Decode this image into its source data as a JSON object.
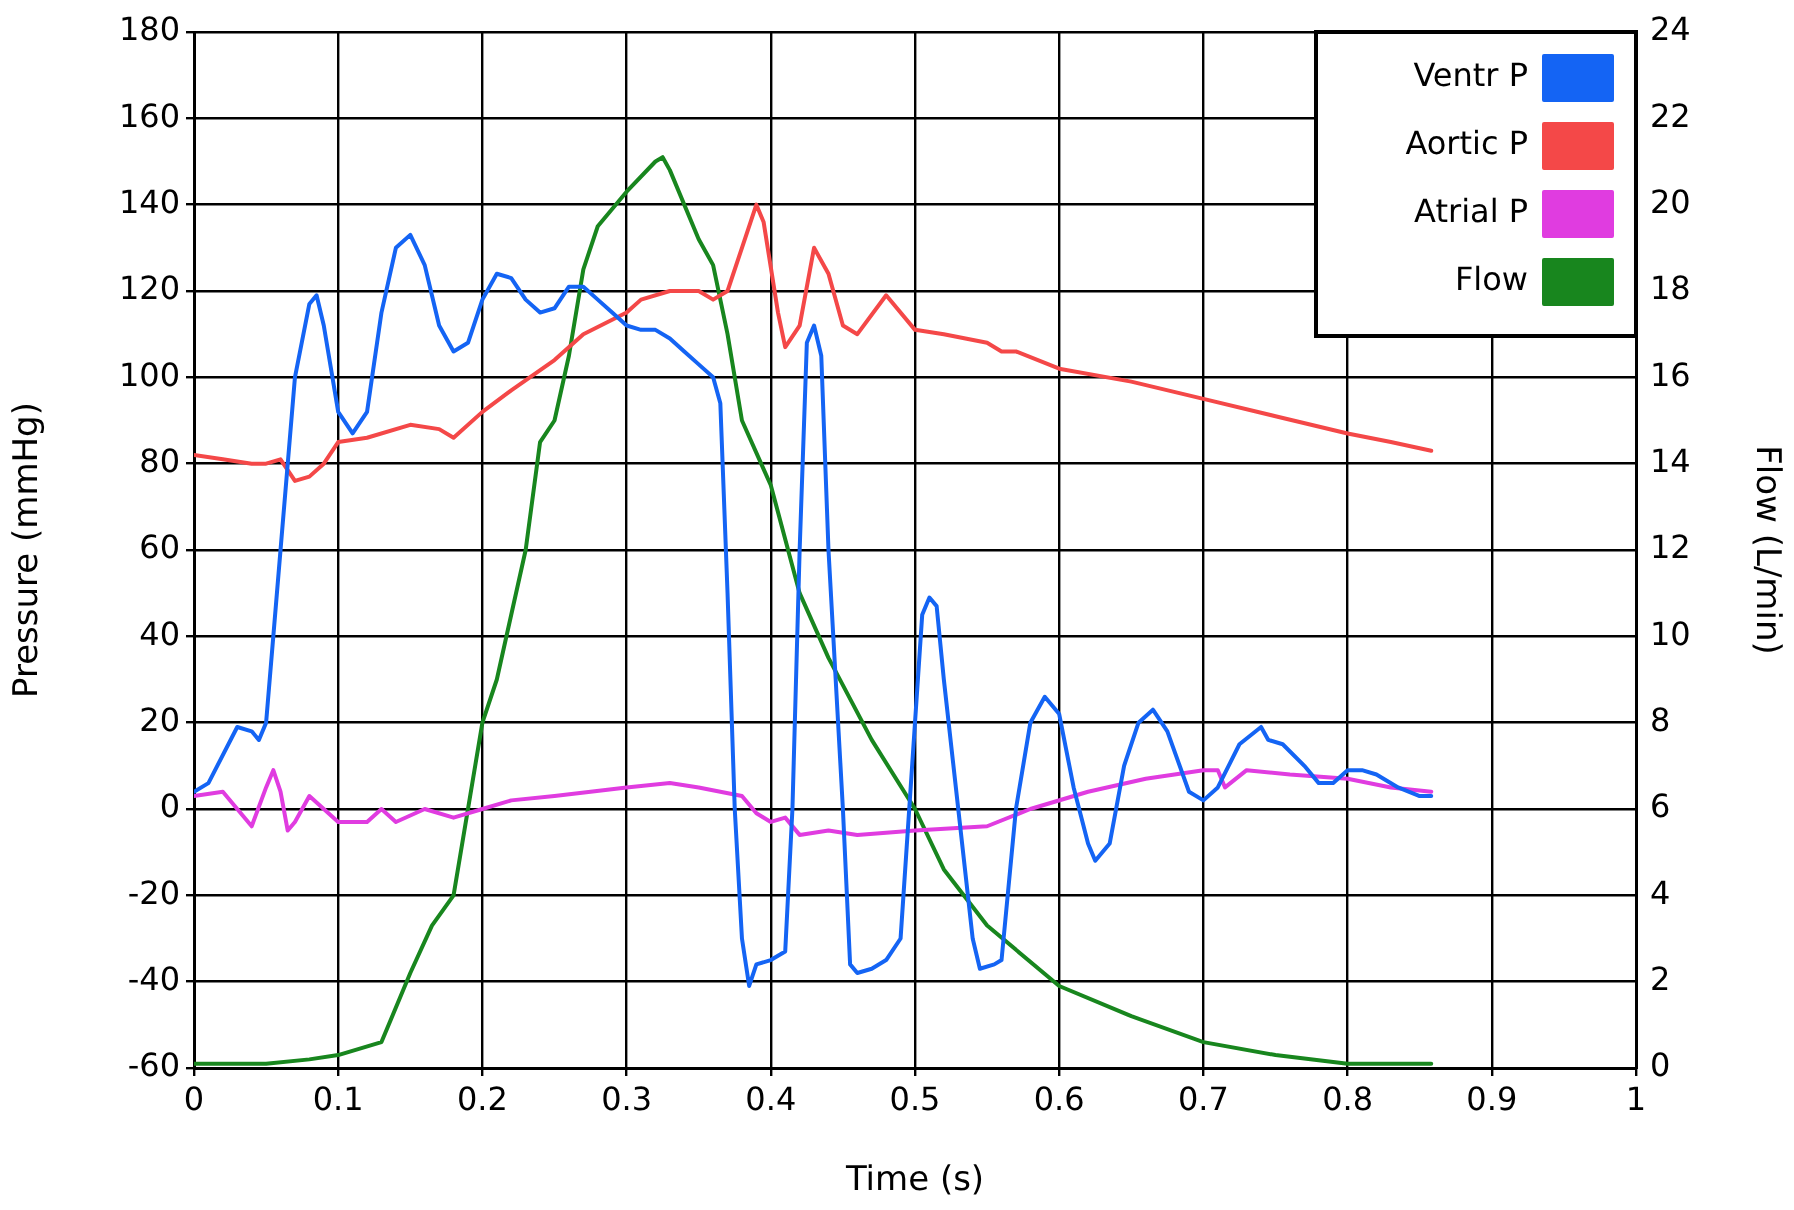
{
  "chart_data": {
    "type": "line",
    "xlabel": "Time (s)",
    "ylabel": "Pressure (mmHg)",
    "y2label": "Flow (L/min)",
    "xlim": [
      0,
      1
    ],
    "xticks": [
      0,
      0.1,
      0.2,
      0.3,
      0.4,
      0.5,
      0.6,
      0.7,
      0.8,
      0.9,
      1
    ],
    "ylim": [
      -60,
      180
    ],
    "yticks": [
      -60,
      -40,
      -20,
      0,
      20,
      40,
      60,
      80,
      100,
      120,
      140,
      160,
      180
    ],
    "y2lim": [
      0,
      24
    ],
    "y2ticks": [
      0,
      2,
      4,
      6,
      8,
      10,
      12,
      14,
      16,
      18,
      20,
      22,
      24
    ],
    "grid": true,
    "legend": "top right",
    "marker": "none",
    "line_style": "solid",
    "series": [
      {
        "name": "Ventr P",
        "color": "#1464f4",
        "x": [
          0,
          0.01,
          0.03,
          0.04,
          0.045,
          0.05,
          0.06,
          0.07,
          0.08,
          0.085,
          0.09,
          0.1,
          0.11,
          0.12,
          0.13,
          0.14,
          0.15,
          0.16,
          0.17,
          0.18,
          0.19,
          0.2,
          0.21,
          0.22,
          0.23,
          0.24,
          0.25,
          0.26,
          0.27,
          0.28,
          0.29,
          0.3,
          0.31,
          0.32,
          0.33,
          0.34,
          0.35,
          0.36,
          0.365,
          0.37,
          0.375,
          0.38,
          0.385,
          0.39,
          0.4,
          0.41,
          0.415,
          0.42,
          0.425,
          0.43,
          0.435,
          0.44,
          0.45,
          0.455,
          0.46,
          0.47,
          0.48,
          0.49,
          0.5,
          0.505,
          0.51,
          0.515,
          0.52,
          0.53,
          0.54,
          0.545,
          0.555,
          0.56,
          0.57,
          0.58,
          0.59,
          0.6,
          0.61,
          0.62,
          0.625,
          0.635,
          0.645,
          0.655,
          0.665,
          0.675,
          0.69,
          0.7,
          0.71,
          0.725,
          0.74,
          0.745,
          0.755,
          0.77,
          0.78,
          0.79,
          0.8,
          0.81,
          0.82,
          0.835,
          0.85,
          0.858
        ],
        "values": [
          4,
          6,
          19,
          18,
          16,
          20,
          60,
          100,
          117,
          119,
          112,
          92,
          87,
          92,
          115,
          130,
          133,
          126,
          112,
          106,
          108,
          118,
          124,
          123,
          118,
          115,
          116,
          121,
          121,
          118,
          115,
          112,
          111,
          111,
          109,
          106,
          103,
          100,
          94,
          50,
          0,
          -30,
          -41,
          -36,
          -35,
          -33,
          0,
          60,
          108,
          112,
          105,
          60,
          0,
          -36,
          -38,
          -37,
          -35,
          -30,
          20,
          45,
          49,
          47,
          30,
          0,
          -30,
          -37,
          -36,
          -35,
          0,
          20,
          26,
          22,
          5,
          -8,
          -12,
          -8,
          10,
          20,
          23,
          18,
          4,
          2,
          5,
          15,
          19,
          16,
          15,
          10,
          6,
          6,
          9,
          9,
          8,
          5,
          3,
          3
        ]
      },
      {
        "name": "Aortic P",
        "color": "#f44848",
        "x": [
          0,
          0.02,
          0.04,
          0.05,
          0.06,
          0.07,
          0.08,
          0.09,
          0.1,
          0.12,
          0.15,
          0.17,
          0.18,
          0.2,
          0.22,
          0.25,
          0.27,
          0.3,
          0.31,
          0.33,
          0.35,
          0.36,
          0.37,
          0.38,
          0.39,
          0.395,
          0.405,
          0.41,
          0.42,
          0.43,
          0.44,
          0.45,
          0.46,
          0.48,
          0.5,
          0.52,
          0.55,
          0.56,
          0.57,
          0.6,
          0.65,
          0.7,
          0.75,
          0.8,
          0.83,
          0.858
        ],
        "values": [
          82,
          81,
          80,
          80,
          81,
          76,
          77,
          80,
          85,
          86,
          89,
          88,
          86,
          92,
          97,
          104,
          110,
          115,
          118,
          120,
          120,
          118,
          120,
          130,
          140,
          136,
          115,
          107,
          112,
          130,
          124,
          112,
          110,
          119,
          111,
          110,
          108,
          106,
          106,
          102,
          99,
          95,
          91,
          87,
          85,
          83
        ]
      },
      {
        "name": "Atrial P",
        "color": "#e03ce0",
        "x": [
          0,
          0.02,
          0.03,
          0.04,
          0.05,
          0.055,
          0.06,
          0.065,
          0.07,
          0.08,
          0.09,
          0.1,
          0.12,
          0.13,
          0.14,
          0.16,
          0.18,
          0.2,
          0.22,
          0.25,
          0.3,
          0.33,
          0.35,
          0.38,
          0.39,
          0.4,
          0.41,
          0.42,
          0.44,
          0.46,
          0.5,
          0.55,
          0.58,
          0.62,
          0.66,
          0.7,
          0.71,
          0.715,
          0.73,
          0.76,
          0.8,
          0.83,
          0.858
        ],
        "values": [
          3,
          4,
          0,
          -4,
          5,
          9,
          4,
          -5,
          -3,
          3,
          0,
          -3,
          -3,
          0,
          -3,
          0,
          -2,
          0,
          2,
          3,
          5,
          6,
          5,
          3,
          -1,
          -3,
          -2,
          -6,
          -5,
          -6,
          -5,
          -4,
          0,
          4,
          7,
          9,
          9,
          5,
          9,
          8,
          7,
          5,
          4
        ]
      },
      {
        "name": "Flow",
        "color": "#18861e",
        "axis": "y2",
        "x": [
          0,
          0.05,
          0.08,
          0.1,
          0.13,
          0.15,
          0.165,
          0.18,
          0.2,
          0.21,
          0.23,
          0.24,
          0.25,
          0.26,
          0.27,
          0.28,
          0.3,
          0.32,
          0.325,
          0.33,
          0.35,
          0.36,
          0.37,
          0.38,
          0.4,
          0.42,
          0.44,
          0.47,
          0.5,
          0.52,
          0.55,
          0.6,
          0.65,
          0.7,
          0.75,
          0.8,
          0.858
        ],
        "values": [
          0.1,
          0.1,
          0.2,
          0.3,
          0.6,
          2.2,
          3.3,
          4.0,
          8.0,
          9.0,
          12,
          14.5,
          15.0,
          16.5,
          18.5,
          19.5,
          20.3,
          21.0,
          21.1,
          20.8,
          19.2,
          18.6,
          17.0,
          15,
          13.5,
          11.0,
          9.5,
          7.6,
          6.0,
          4.6,
          3.3,
          1.9,
          1.2,
          0.6,
          0.3,
          0.1,
          0.1
        ]
      }
    ]
  }
}
